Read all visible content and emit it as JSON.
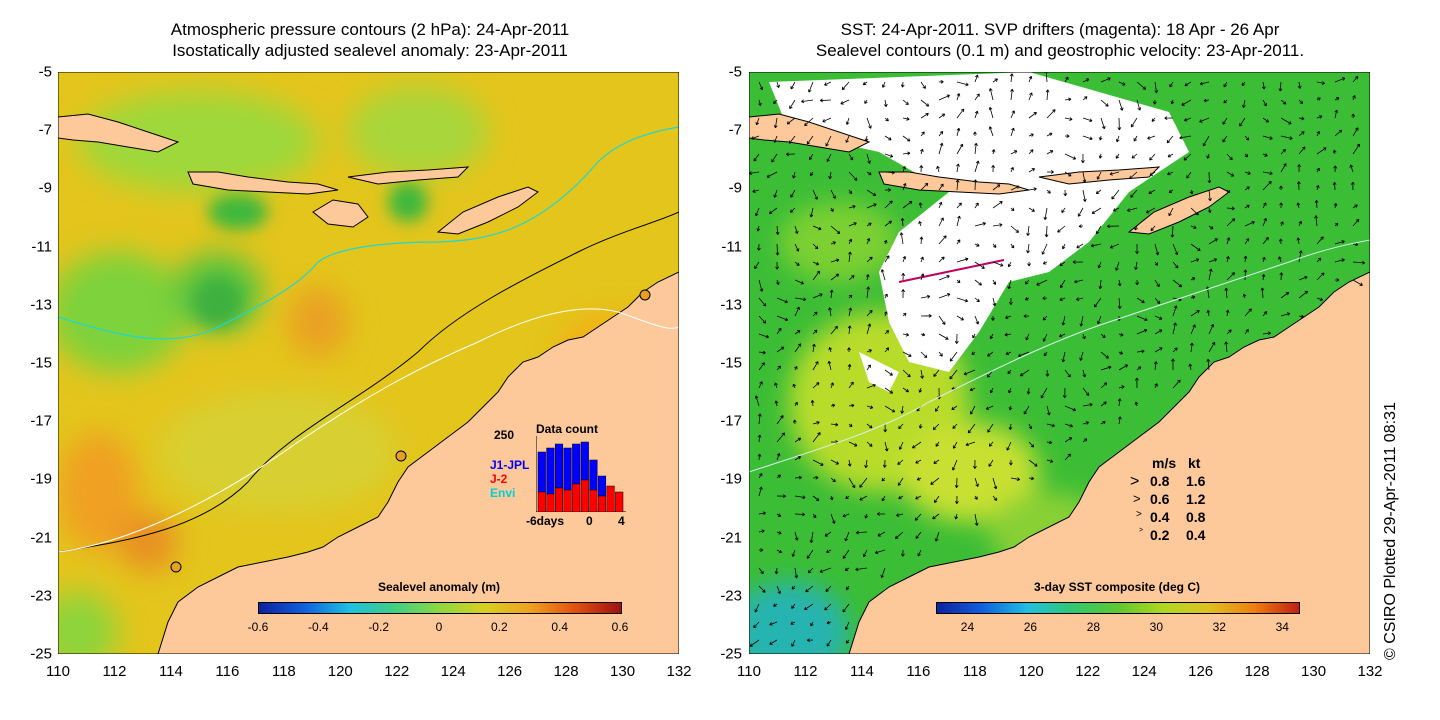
{
  "left_panel": {
    "title_line1": "Atmospheric pressure contours (2 hPa): 24-Apr-2011",
    "title_line2": "Isostatically adjusted sealevel anomaly: 23-Apr-2011",
    "colorbar": {
      "label": "Sealevel anomaly (m)",
      "ticks": [
        "-0.6",
        "-0.4",
        "-0.2",
        "0",
        "0.2",
        "0.4",
        "0.6"
      ],
      "range": [
        -0.6,
        0.6
      ]
    },
    "inset": {
      "title": "Data count",
      "ymax_label": "250",
      "series": [
        {
          "name": "J1-JPL",
          "color": "#0000ff"
        },
        {
          "name": "J-2",
          "color": "#ff0000"
        },
        {
          "name": "Envi",
          "color": "#00e0e0"
        }
      ],
      "x_labels": [
        "-6days",
        "0",
        "4"
      ],
      "x_range": [
        -6,
        4
      ]
    }
  },
  "right_panel": {
    "title_line1": "SST: 24-Apr-2011. SVP drifters (magenta): 18 Apr - 26 Apr",
    "title_line2": "Sealevel contours (0.1 m) and geostrophic velocity: 23-Apr-2011.",
    "colorbar": {
      "label": "3-day SST composite (deg C)",
      "ticks": [
        "24",
        "26",
        "28",
        "30",
        "32",
        "34"
      ],
      "range": [
        23,
        34.5
      ]
    },
    "velocity_legend": {
      "header_ms": "m/s",
      "header_kt": "kt",
      "rows": [
        {
          "ms": "0.8",
          "kt": "1.6"
        },
        {
          "ms": "0.6",
          "kt": "1.2"
        },
        {
          "ms": "0.4",
          "kt": "0.8"
        },
        {
          "ms": "0.2",
          "kt": "0.4"
        }
      ]
    }
  },
  "axes": {
    "x_ticks": [
      "110",
      "112",
      "114",
      "116",
      "118",
      "120",
      "122",
      "124",
      "126",
      "128",
      "130",
      "132"
    ],
    "y_ticks": [
      "-5",
      "-7",
      "-9",
      "-11",
      "-13",
      "-15",
      "-17",
      "-19",
      "-21",
      "-23",
      "-25"
    ],
    "lon_range": [
      110,
      132
    ],
    "lat_range": [
      -25,
      -5
    ]
  },
  "credit": "© CSIRO Plotted 29-Apr-2011 08:31",
  "colors": {
    "land": "#fdc89a",
    "ocean_sla": "#e8c020",
    "ocean_sst": "#44c830"
  }
}
